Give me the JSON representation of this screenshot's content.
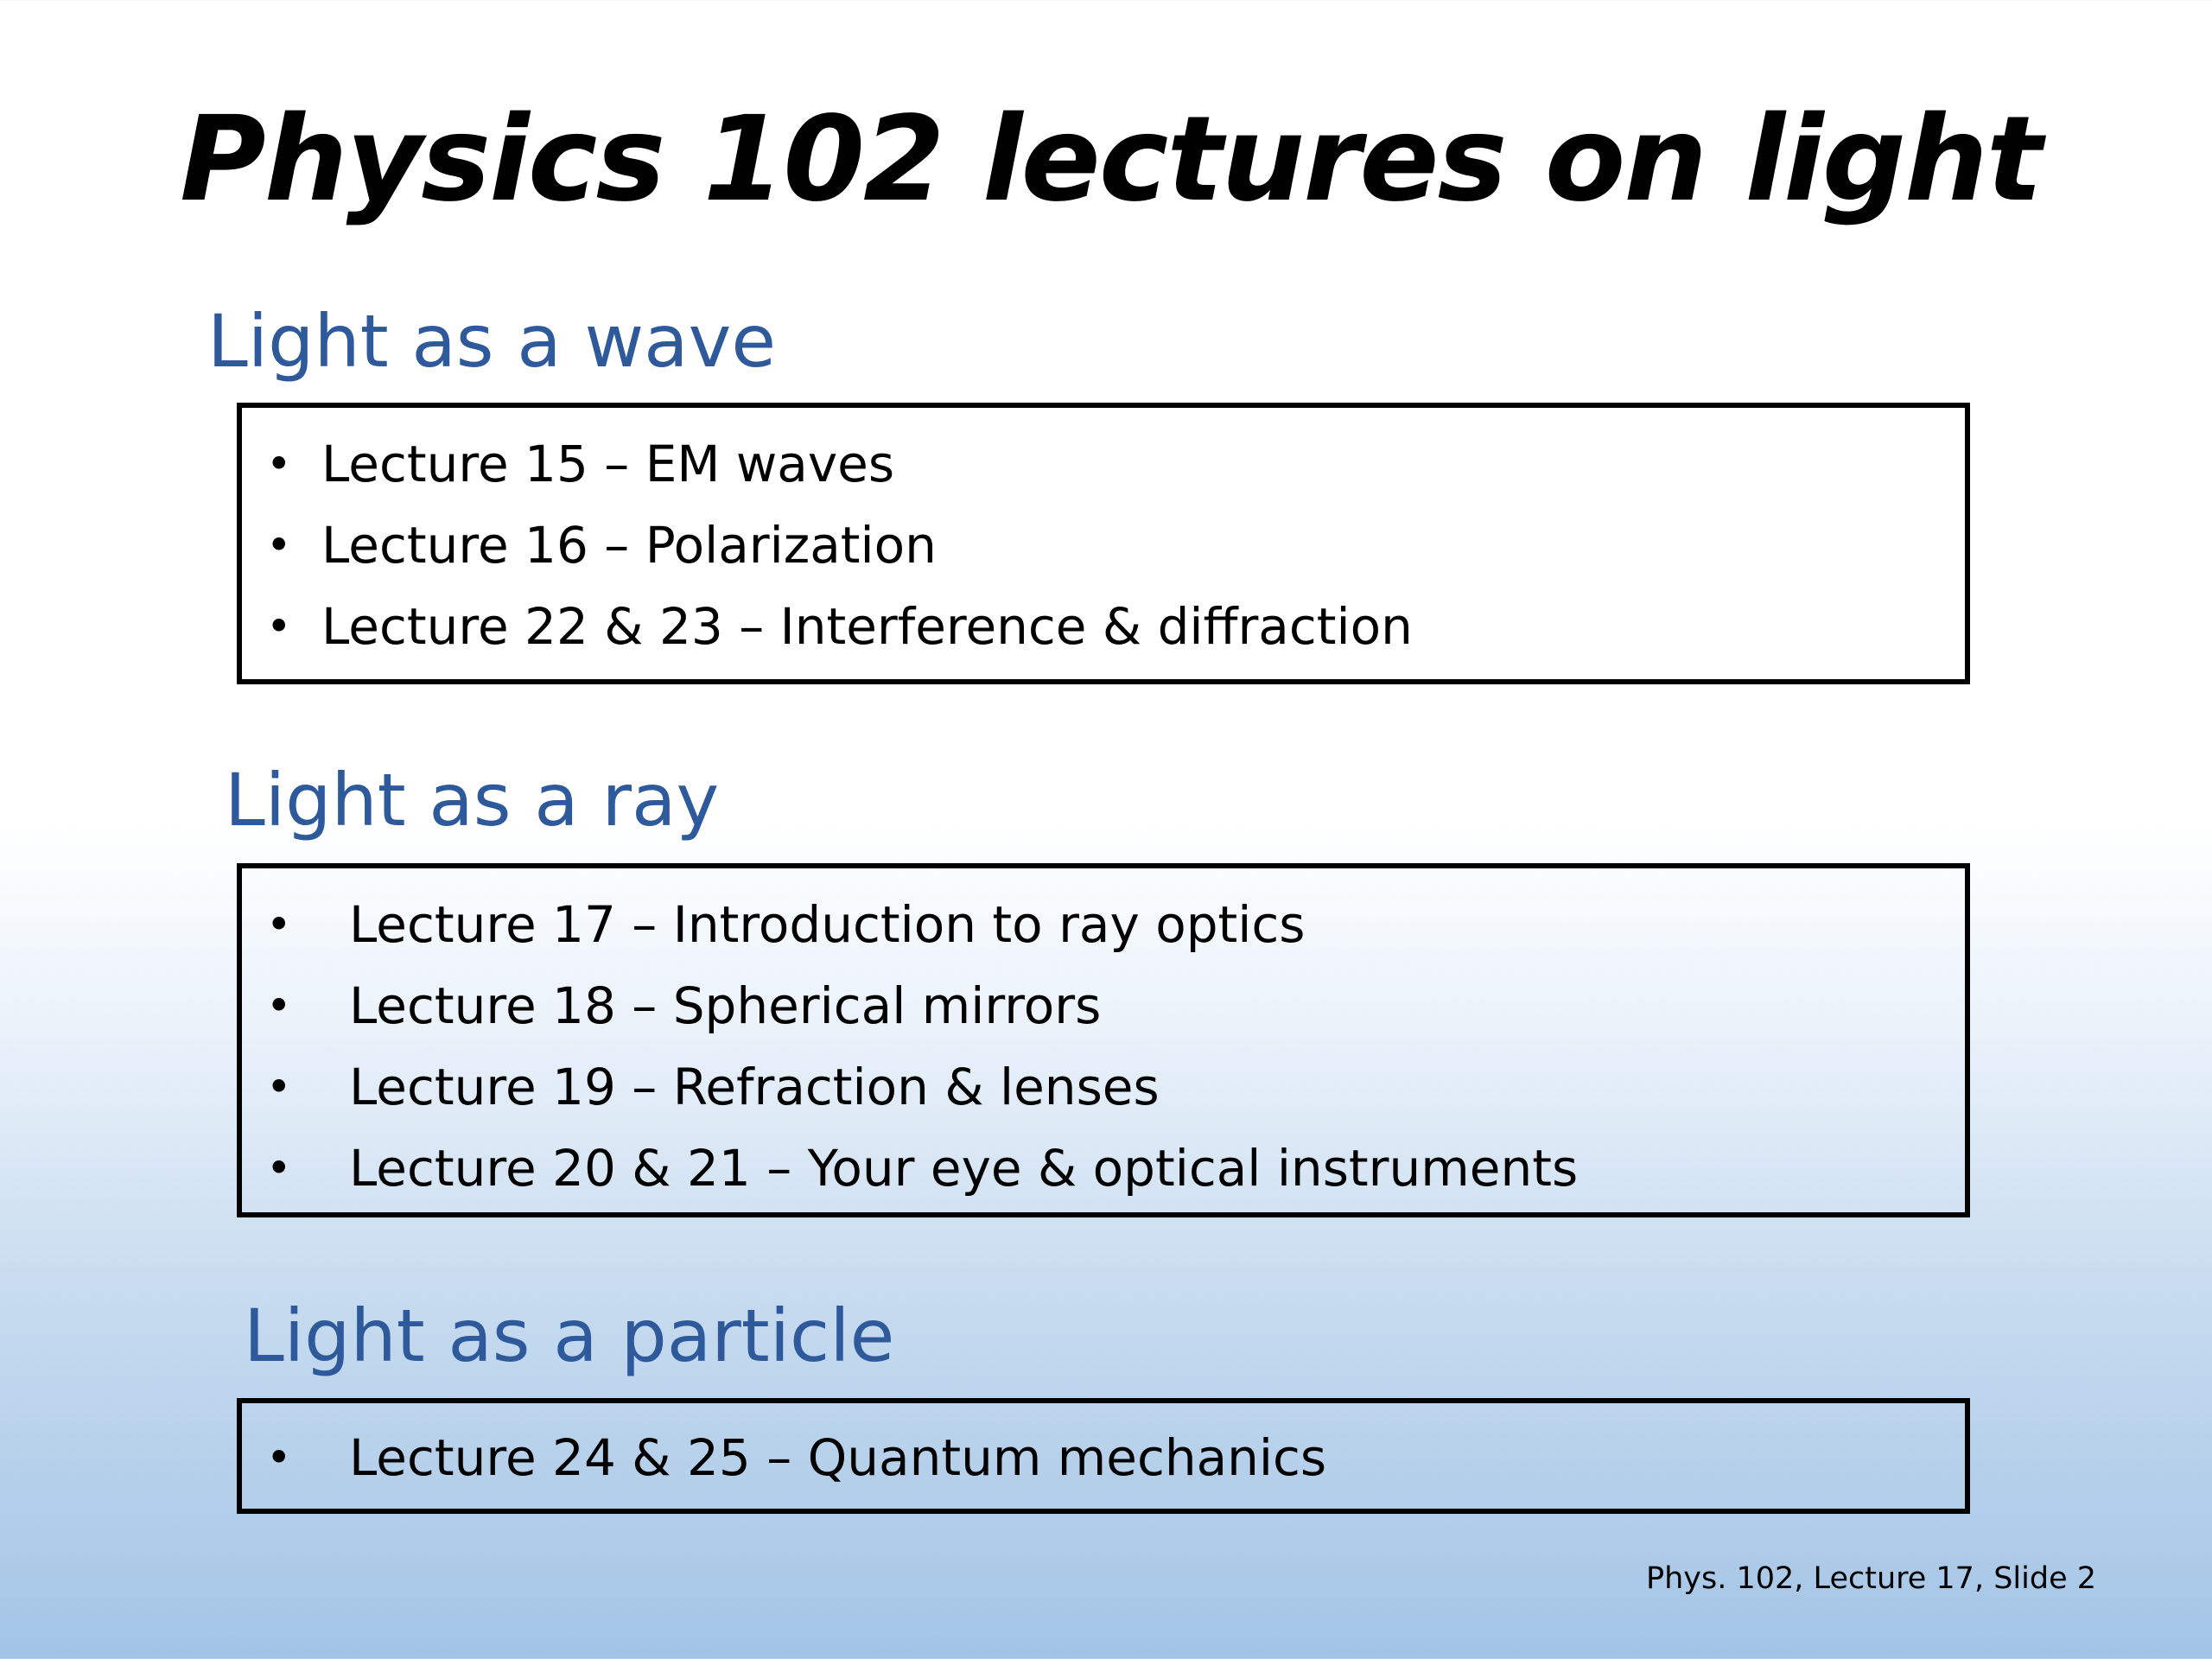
{
  "slide": {
    "title": "Physics 102 lectures on light",
    "sections": [
      {
        "heading": "Light as a wave",
        "items": [
          "Lecture 15 – EM waves",
          "Lecture 16 – Polarization",
          "Lecture 22 & 23 – Interference & diffraction"
        ]
      },
      {
        "heading": "Light as a ray",
        "items": [
          "Lecture 17 – Introduction to ray optics",
          "Lecture 18 – Spherical mirrors",
          "Lecture 19 – Refraction & lenses",
          "Lecture 20 & 21 – Your eye & optical instruments"
        ]
      },
      {
        "heading": "Light as a particle",
        "items": [
          "Lecture 24 & 25 – Quantum mechanics"
        ]
      }
    ],
    "footer": "Phys. 102, Lecture 17, Slide 2",
    "colors": {
      "heading": "#2e5a9c",
      "border": "#000000",
      "gradient_bottom": "#a3c4e6"
    },
    "bullet_glyph": "•"
  }
}
